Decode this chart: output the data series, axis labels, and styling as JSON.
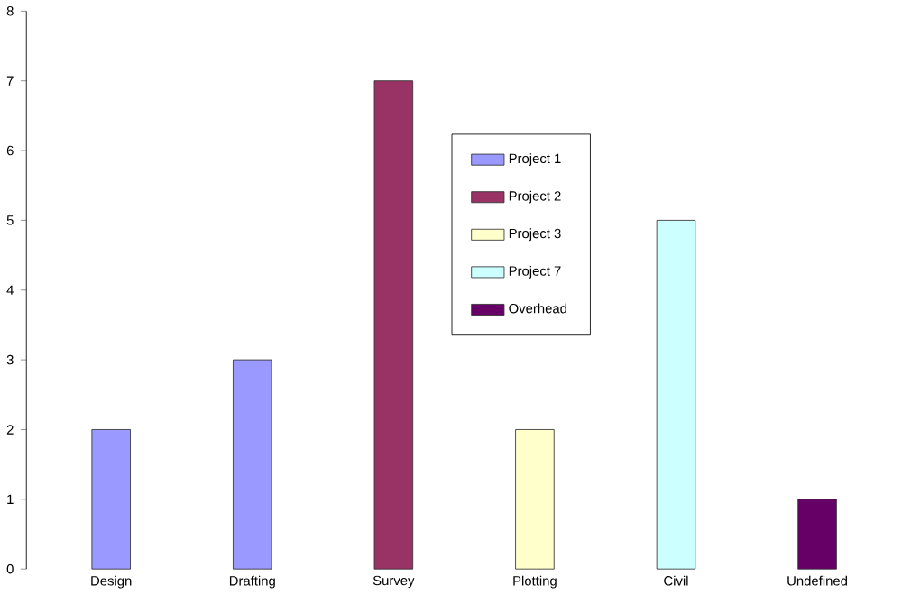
{
  "chart_data": {
    "type": "bar",
    "categories": [
      "Design",
      "Drafting",
      "Survey",
      "Plotting",
      "Civil",
      "Undefined"
    ],
    "series": [
      {
        "name": "Project 1",
        "color": "#9999ff",
        "values": [
          2,
          3,
          null,
          null,
          null,
          null
        ]
      },
      {
        "name": "Project 2",
        "color": "#993366",
        "values": [
          null,
          null,
          7,
          null,
          null,
          null
        ]
      },
      {
        "name": "Project 3",
        "color": "#ffffcc",
        "values": [
          null,
          null,
          null,
          2,
          null,
          null
        ]
      },
      {
        "name": "Project 7",
        "color": "#ccffff",
        "values": [
          null,
          null,
          null,
          null,
          5,
          null
        ]
      },
      {
        "name": "Overhead",
        "color": "#660066",
        "values": [
          null,
          null,
          null,
          null,
          null,
          1
        ]
      }
    ],
    "ylim": [
      0,
      8
    ],
    "yticks": [
      0,
      1,
      2,
      3,
      4,
      5,
      6,
      7,
      8
    ],
    "legend": "top",
    "grid": false
  }
}
